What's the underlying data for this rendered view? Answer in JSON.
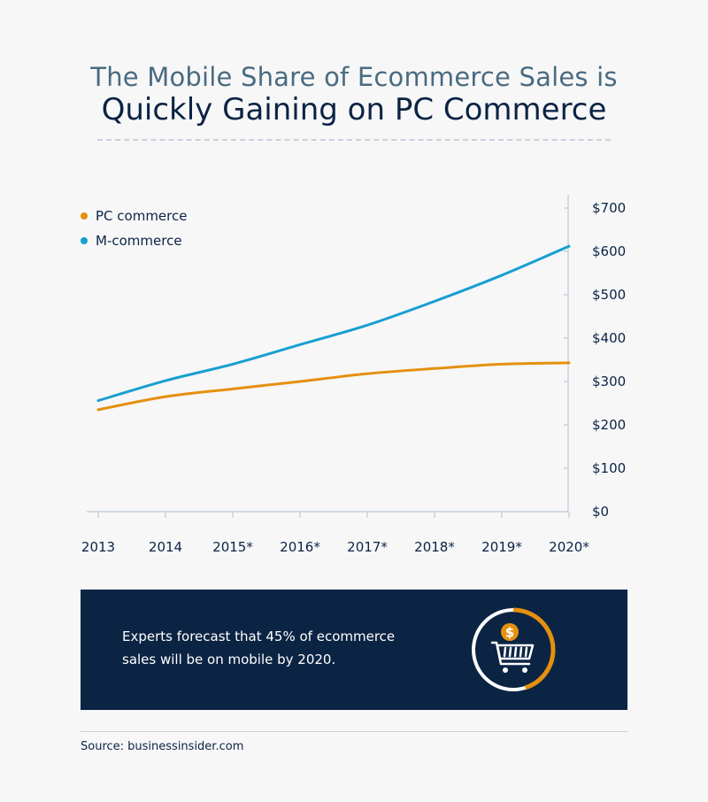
{
  "title": {
    "line1": "The Mobile Share of Ecommerce Sales is",
    "line2": "Quickly Gaining on PC Commerce"
  },
  "chart_data": {
    "type": "line",
    "categories": [
      "2013",
      "2014",
      "2015*",
      "2016*",
      "2017*",
      "2018*",
      "2019*",
      "2020*"
    ],
    "series": [
      {
        "name": "PC commerce",
        "color": "#e5900f",
        "values": [
          235,
          265,
          283,
          300,
          318,
          330,
          340,
          343
        ]
      },
      {
        "name": "M-commerce",
        "color": "#179fd0",
        "values": [
          256,
          302,
          340,
          385,
          430,
          485,
          545,
          612
        ]
      }
    ],
    "y_tick_labels": [
      "$0",
      "$100",
      "$200",
      "$300",
      "$400",
      "$500",
      "$600",
      "$700"
    ],
    "y_tick_values": [
      0,
      100,
      200,
      300,
      400,
      500,
      600,
      700
    ],
    "ylim": [
      0,
      720
    ],
    "y_axis_position": "right",
    "grid": false,
    "legend_position": "top-left"
  },
  "callout": {
    "text": "Experts forecast that 45% of ecommerce sales will be on mobile by 2020.",
    "highlight_value": 0.45,
    "icon": "shopping-cart-dollar-icon",
    "background_color": "#0c2443",
    "accent_color": "#e5900f"
  },
  "source": "Source: businessinsider.com"
}
